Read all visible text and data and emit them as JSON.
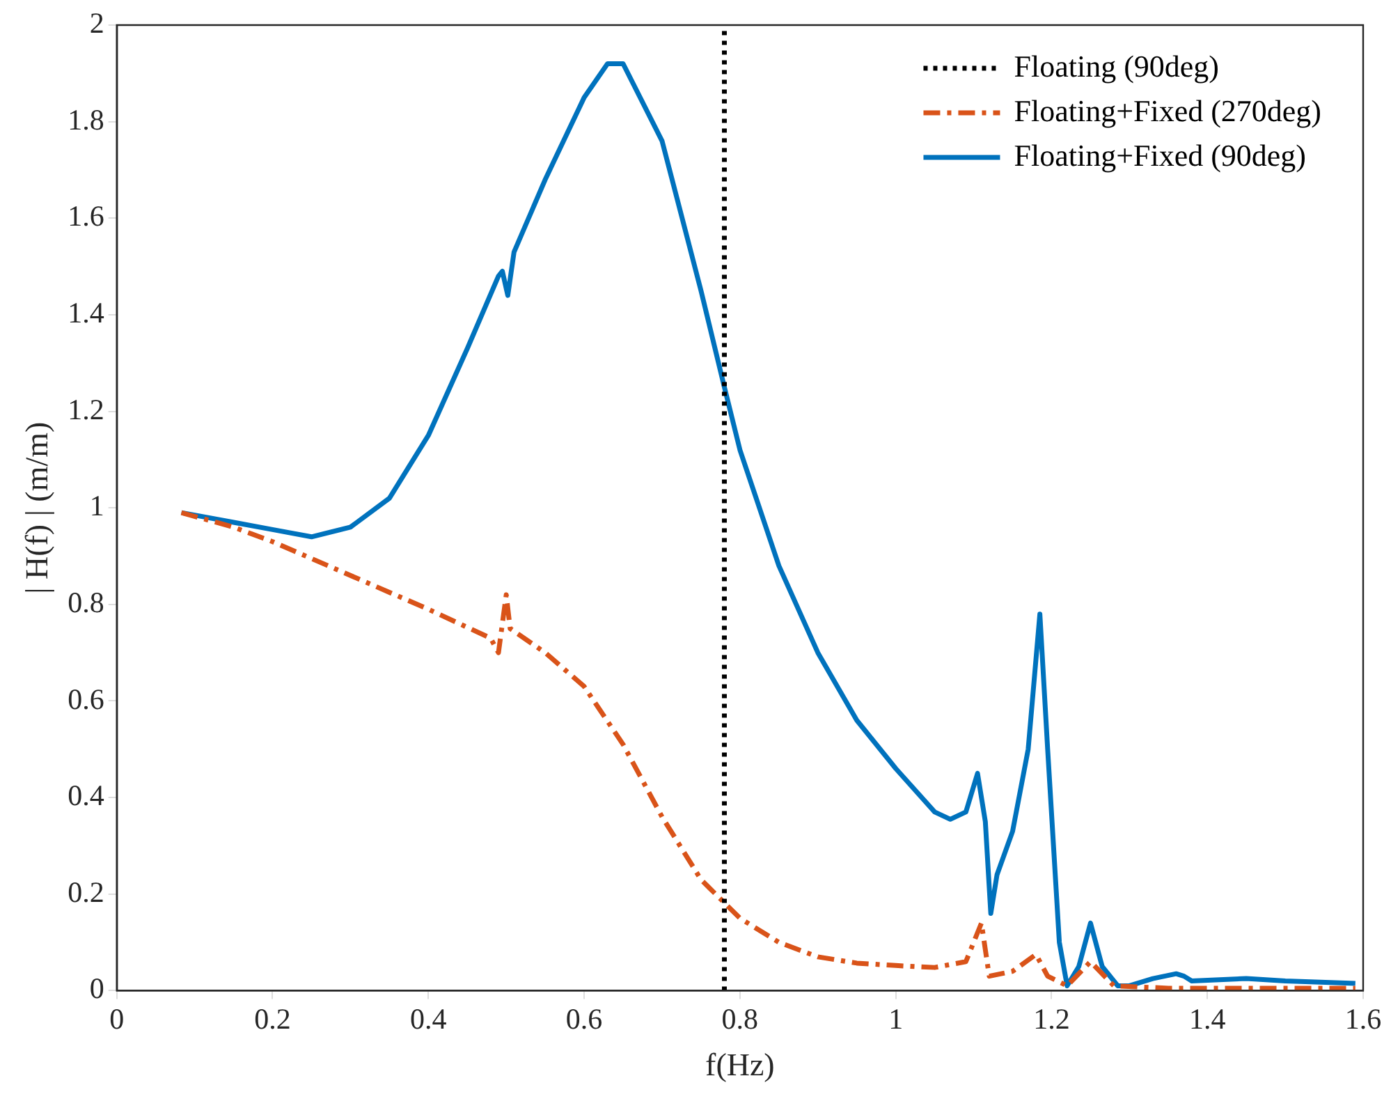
{
  "chart_data": {
    "type": "line",
    "xlabel": "f(Hz)",
    "ylabel": "| H(f) | (m/m)",
    "xlim": [
      0,
      1.6
    ],
    "xticks": [
      0,
      0.2,
      0.4,
      0.6,
      0.8,
      1,
      1.2,
      1.4,
      1.6
    ],
    "ylim": [
      0,
      2
    ],
    "yticks": [
      0,
      0.2,
      0.4,
      0.6,
      0.8,
      1,
      1.2,
      1.4,
      1.6,
      1.8,
      2
    ],
    "grid": false,
    "legend": "top right",
    "marker": "none",
    "series": [
      {
        "name": "Floating (90deg)",
        "color": "#000000",
        "line_style": "dotted",
        "x": [
          0.78,
          0.78
        ],
        "values": [
          0,
          2
        ]
      },
      {
        "name": "Floating+Fixed (270deg)",
        "color": "#d95319",
        "line_style": "dashdot",
        "x": [
          0.083,
          0.15,
          0.2,
          0.3,
          0.4,
          0.48,
          0.49,
          0.5,
          0.505,
          0.55,
          0.6,
          0.65,
          0.7,
          0.75,
          0.8,
          0.85,
          0.9,
          0.95,
          1.0,
          1.05,
          1.09,
          1.11,
          1.12,
          1.15,
          1.18,
          1.195,
          1.22,
          1.25,
          1.28,
          1.35,
          1.59
        ],
        "values": [
          0.99,
          0.96,
          0.93,
          0.86,
          0.79,
          0.73,
          0.7,
          0.82,
          0.75,
          0.7,
          0.63,
          0.51,
          0.36,
          0.23,
          0.15,
          0.1,
          0.07,
          0.057,
          0.052,
          0.048,
          0.06,
          0.14,
          0.03,
          0.04,
          0.075,
          0.03,
          0.01,
          0.06,
          0.01,
          0.005,
          0.005
        ]
      },
      {
        "name": "Floating+Fixed (90deg)",
        "color": "#0072bd",
        "line_style": "solid",
        "x": [
          0.083,
          0.15,
          0.2,
          0.25,
          0.3,
          0.35,
          0.4,
          0.45,
          0.49,
          0.495,
          0.502,
          0.51,
          0.55,
          0.6,
          0.63,
          0.65,
          0.7,
          0.75,
          0.78,
          0.8,
          0.85,
          0.9,
          0.95,
          1.0,
          1.05,
          1.07,
          1.09,
          1.105,
          1.115,
          1.122,
          1.13,
          1.15,
          1.17,
          1.185,
          1.195,
          1.21,
          1.22,
          1.235,
          1.25,
          1.265,
          1.285,
          1.3,
          1.33,
          1.36,
          1.37,
          1.38,
          1.45,
          1.5,
          1.59
        ],
        "values": [
          0.99,
          0.97,
          0.955,
          0.94,
          0.96,
          1.02,
          1.15,
          1.33,
          1.48,
          1.49,
          1.44,
          1.53,
          1.68,
          1.85,
          1.92,
          1.92,
          1.76,
          1.45,
          1.25,
          1.12,
          0.88,
          0.7,
          0.56,
          0.46,
          0.37,
          0.355,
          0.37,
          0.45,
          0.35,
          0.16,
          0.24,
          0.33,
          0.5,
          0.78,
          0.5,
          0.1,
          0.01,
          0.05,
          0.14,
          0.05,
          0.01,
          0.01,
          0.025,
          0.035,
          0.03,
          0.02,
          0.025,
          0.02,
          0.015
        ]
      }
    ]
  }
}
